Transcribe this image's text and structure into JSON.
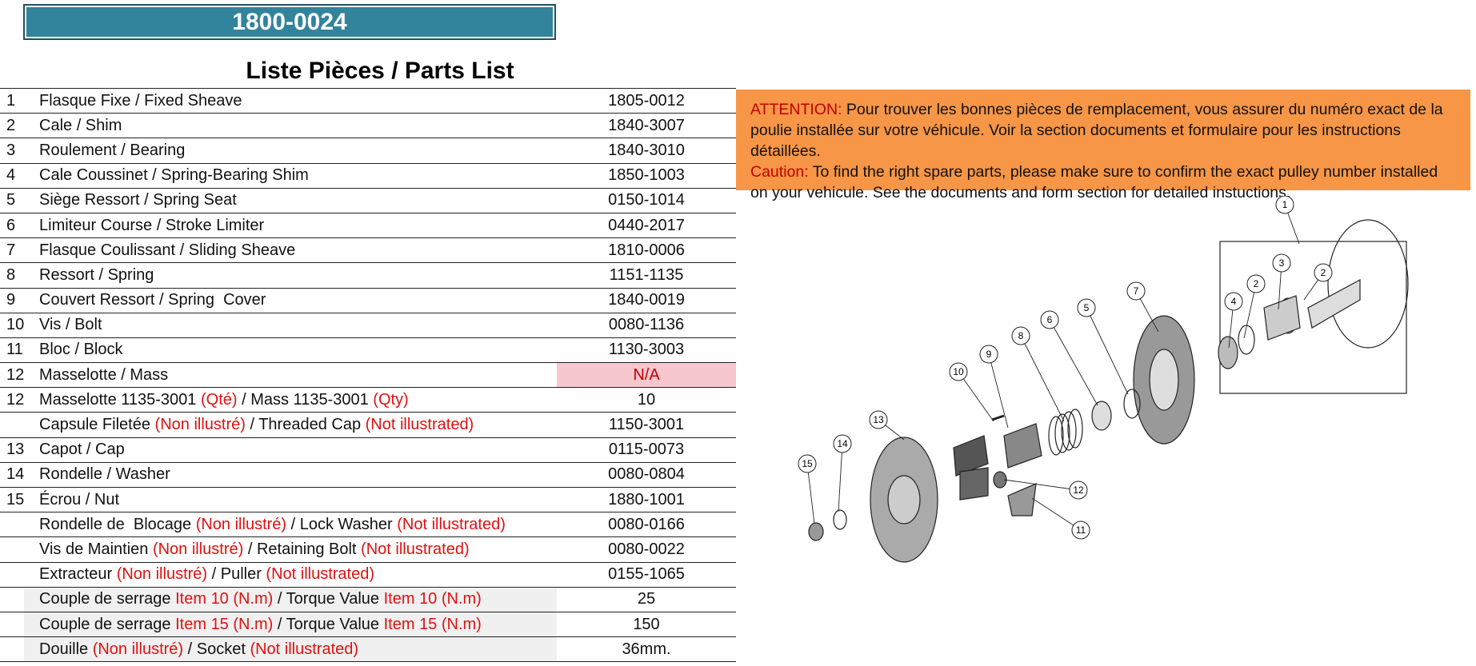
{
  "header": {
    "part_number": "1800-0024"
  },
  "title": "Liste Pièces / Parts List",
  "rows": [
    {
      "num": "1",
      "parts": [
        {
          "t": "Flasque Fixe / Fixed Sheave",
          "r": false
        }
      ],
      "code": "1805-0012"
    },
    {
      "num": "2",
      "parts": [
        {
          "t": "Cale / Shim",
          "r": false
        }
      ],
      "code": "1840-3007"
    },
    {
      "num": "3",
      "parts": [
        {
          "t": "Roulement / Bearing",
          "r": false
        }
      ],
      "code": "1840-3010"
    },
    {
      "num": "4",
      "parts": [
        {
          "t": "Cale Coussinet / Spring-Bearing Shim",
          "r": false
        }
      ],
      "code": "1850-1003"
    },
    {
      "num": "5",
      "parts": [
        {
          "t": "Siège Ressort / Spring Seat",
          "r": false
        }
      ],
      "code": "0150-1014"
    },
    {
      "num": "6",
      "parts": [
        {
          "t": "Limiteur Course / Stroke Limiter",
          "r": false
        }
      ],
      "code": "0440-2017"
    },
    {
      "num": "7",
      "parts": [
        {
          "t": "Flasque Coulissant / Sliding Sheave",
          "r": false
        }
      ],
      "code": "1810-0006"
    },
    {
      "num": "8",
      "parts": [
        {
          "t": "Ressort / Spring",
          "r": false
        }
      ],
      "code": "1151-1135"
    },
    {
      "num": "9",
      "parts": [
        {
          "t": "Couvert Ressort / Spring  Cover",
          "r": false
        }
      ],
      "code": "1840-0019"
    },
    {
      "num": "10",
      "parts": [
        {
          "t": "Vis / Bolt",
          "r": false
        }
      ],
      "code": "0080-1136"
    },
    {
      "num": "11",
      "parts": [
        {
          "t": "Bloc / Block",
          "r": false
        }
      ],
      "code": "1130-3003"
    },
    {
      "num": "12",
      "parts": [
        {
          "t": "Masselotte / Mass",
          "r": false
        }
      ],
      "code": "N/A",
      "na": true
    },
    {
      "num": "12",
      "parts": [
        {
          "t": "Masselotte 1135-3001 ",
          "r": false
        },
        {
          "t": "(Qté)",
          "r": true
        },
        {
          "t": " / Mass 1135-3001 ",
          "r": false
        },
        {
          "t": "(Qty)",
          "r": true
        }
      ],
      "code": "10"
    },
    {
      "num": "",
      "parts": [
        {
          "t": "Capsule Filetée ",
          "r": false
        },
        {
          "t": "(Non illustré)",
          "r": true
        },
        {
          "t": " / Threaded Cap ",
          "r": false
        },
        {
          "t": "(Not illustrated)",
          "r": true
        }
      ],
      "code": "1150-3001"
    },
    {
      "num": "13",
      "parts": [
        {
          "t": "Capot / Cap",
          "r": false
        }
      ],
      "code": "0115-0073"
    },
    {
      "num": "14",
      "parts": [
        {
          "t": "Rondelle / Washer",
          "r": false
        }
      ],
      "code": "0080-0804"
    },
    {
      "num": "15",
      "parts": [
        {
          "t": "Écrou / Nut",
          "r": false
        }
      ],
      "code": "1880-1001"
    },
    {
      "num": "",
      "parts": [
        {
          "t": "Rondelle de  Blocage ",
          "r": false
        },
        {
          "t": "(Non illustré)",
          "r": true
        },
        {
          "t": " / Lock Washer ",
          "r": false
        },
        {
          "t": "(Not illustrated)",
          "r": true
        }
      ],
      "code": "0080-0166"
    },
    {
      "num": "",
      "parts": [
        {
          "t": "Vis de Maintien ",
          "r": false
        },
        {
          "t": "(Non illustré)",
          "r": true
        },
        {
          "t": " / Retaining Bolt ",
          "r": false
        },
        {
          "t": "(Not illustrated)",
          "r": true
        }
      ],
      "code": "0080-0022"
    },
    {
      "num": "",
      "parts": [
        {
          "t": "Extracteur ",
          "r": false
        },
        {
          "t": "(Non illustré)",
          "r": true
        },
        {
          "t": " / Puller ",
          "r": false
        },
        {
          "t": "(Not illustrated)",
          "r": true
        }
      ],
      "code": "0155-1065"
    },
    {
      "num": "",
      "parts": [
        {
          "t": "Couple de serrage ",
          "r": false
        },
        {
          "t": "Item 10 (N.m)",
          "r": true
        },
        {
          "t": " / Torque Value ",
          "r": false
        },
        {
          "t": "Item 10 (N.m)",
          "r": true
        }
      ],
      "code": "25",
      "shade": true
    },
    {
      "num": "",
      "parts": [
        {
          "t": "Couple de serrage ",
          "r": false
        },
        {
          "t": "Item 15 (N.m)",
          "r": true
        },
        {
          "t": " / Torque Value ",
          "r": false
        },
        {
          "t": "Item 15 (N.m)",
          "r": true
        }
      ],
      "code": "150",
      "shade": true
    },
    {
      "num": "",
      "parts": [
        {
          "t": "Douille ",
          "r": false
        },
        {
          "t": "(Non illustré)",
          "r": true
        },
        {
          "t": " / Socket ",
          "r": false
        },
        {
          "t": "(Not illustrated)",
          "r": true
        }
      ],
      "code": "36mm.",
      "shade": true
    }
  ],
  "notice": {
    "fr_label": "ATTENTION:",
    "fr_text": " Pour trouver les bonnes pièces de remplacement, vous assurer du numéro exact de la poulie installée sur votre véhicule. Voir la section documents et formulaire pour les instructions détaillées.",
    "en_label": "Caution:",
    "en_text": " To find the right spare parts, please make sure to confirm the exact pulley number installed on your vehicule. See the documents and form section for detailed instuctions."
  },
  "diagram": {
    "callouts": [
      "1",
      "2",
      "3",
      "2",
      "4",
      "7",
      "5",
      "6",
      "8",
      "9",
      "10",
      "13",
      "14",
      "15",
      "12",
      "11"
    ]
  }
}
